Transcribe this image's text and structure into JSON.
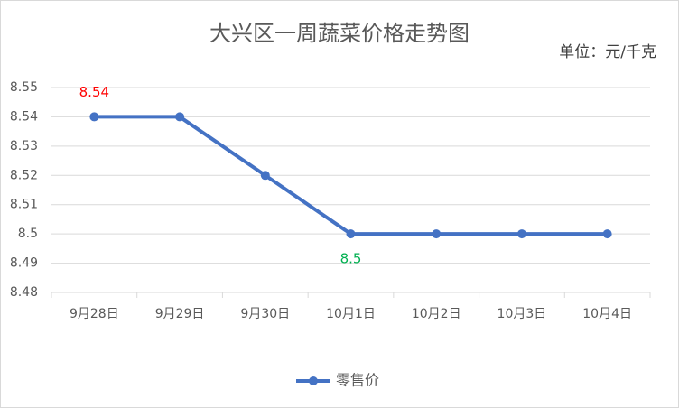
{
  "chart_data": {
    "type": "line",
    "title": "大兴区一周蔬菜价格走势图",
    "subtitle": "单位：元/千克",
    "categories": [
      "9月28日",
      "9月29日",
      "9月30日",
      "10月1日",
      "10月2日",
      "10月3日",
      "10月4日"
    ],
    "series": [
      {
        "name": "零售价",
        "color": "#4472c4",
        "values": [
          8.54,
          8.54,
          8.52,
          8.5,
          8.5,
          8.5,
          8.5
        ]
      }
    ],
    "ylim": [
      8.48,
      8.55
    ],
    "yticks": [
      8.48,
      8.49,
      8.5,
      8.51,
      8.52,
      8.53,
      8.54,
      8.55
    ],
    "grid": true,
    "legend": "bottom",
    "labeled_points": [
      {
        "index": 0,
        "color": "#ff0000",
        "position": "above"
      },
      {
        "index": 3,
        "color": "#00b050",
        "position": "below"
      }
    ]
  }
}
